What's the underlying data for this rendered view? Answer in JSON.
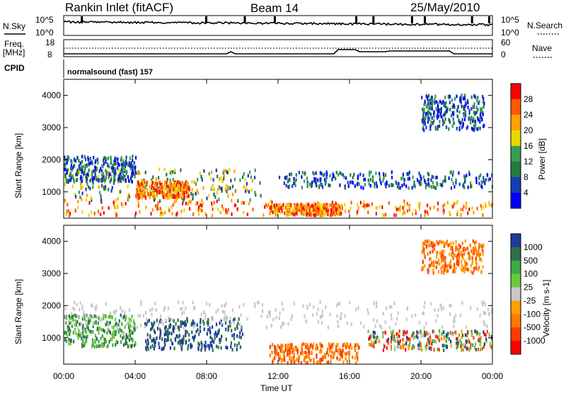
{
  "header": {
    "station": "Rankin Inlet (fitACF)",
    "beam": "Beam 14",
    "date": "25/May/2010"
  },
  "side_labels": {
    "nsky": "N.Sky",
    "freq_line1": "Freq.",
    "freq_line2": "[MHz]",
    "cpid": "CPID",
    "nsearch": "N.Search",
    "nave": "Nave"
  },
  "nsky_axis": {
    "top": "10^5",
    "bottom": "10^0"
  },
  "freq_axis": {
    "left_ticks": [
      "18",
      "8"
    ],
    "right_ticks": [
      "60",
      "0"
    ]
  },
  "cpid_text": "normalsound (fast) 157",
  "axes": {
    "xlabel": "Time UT",
    "ylabel": "Slant Range [km]"
  },
  "chart_data": [
    {
      "type": "heatmap",
      "title": "",
      "variable": "Power [dB]",
      "colorbar_label": "Power [dB]",
      "colorbar_ticks": [
        "28",
        "24",
        "20",
        "16",
        "12",
        "8",
        "4"
      ],
      "colorbar_colors": [
        "#ff0000",
        "#ff5a00",
        "#ffa000",
        "#e8d800",
        "#3c9b5a",
        "#237b3c",
        "#193cb4",
        "#0000ff"
      ],
      "x_ticks": [
        "00:00",
        "04:00",
        "08:00",
        "12:00",
        "16:00",
        "20:00",
        "00:00"
      ],
      "y_ticks": [
        "1000",
        "2000",
        "3000",
        "4000"
      ],
      "xlim_hours": [
        0,
        24
      ],
      "ylim_km": [
        180,
        4500
      ],
      "scatter_regions": [
        {
          "t0": 0.0,
          "t1": 24.0,
          "r0": 250,
          "r1": 700,
          "level": "high"
        },
        {
          "t0": 0.0,
          "t1": 11.0,
          "r0": 700,
          "r1": 1700,
          "level": "medium"
        },
        {
          "t0": 4.0,
          "t1": 7.0,
          "r0": 800,
          "r1": 1300,
          "level": "high"
        },
        {
          "t0": 11.5,
          "t1": 15.5,
          "r0": 250,
          "r1": 600,
          "level": "high"
        },
        {
          "t0": 12.0,
          "t1": 24.0,
          "r0": 1100,
          "r1": 1600,
          "level": "low"
        },
        {
          "t0": 0.0,
          "t1": 4.0,
          "r0": 1300,
          "r1": 2100,
          "level": "low"
        },
        {
          "t0": 20.0,
          "t1": 23.5,
          "r0": 2900,
          "r1": 4000,
          "level": "low"
        }
      ]
    },
    {
      "type": "heatmap",
      "title": "",
      "variable": "Velocity [m s-1]",
      "colorbar_label": "Velocity [m s-1]",
      "colorbar_ticks": [
        "1000",
        "500",
        "100",
        "25",
        "-25",
        "-100",
        "-500",
        "-1000"
      ],
      "colorbar_colors": [
        "#1e3ca0",
        "#2d6e4b",
        "#3caa46",
        "#6ec83c",
        "#c8c8c8",
        "#ffa000",
        "#ff7800",
        "#ff3c00",
        "#ff0000"
      ],
      "x_ticks": [
        "00:00",
        "04:00",
        "08:00",
        "12:00",
        "16:00",
        "20:00",
        "00:00"
      ],
      "y_ticks": [
        "1000",
        "2000",
        "3000",
        "4000"
      ],
      "xlim_hours": [
        0,
        24
      ],
      "ylim_km": [
        180,
        4500
      ],
      "ground_scatter_color": "#c8c8c8",
      "scatter_regions": [
        {
          "t0": 0.0,
          "t1": 4.0,
          "r0": 700,
          "r1": 1700,
          "level": "green"
        },
        {
          "t0": 4.5,
          "t1": 10.0,
          "r0": 600,
          "r1": 1600,
          "level": "blue"
        },
        {
          "t0": 11.5,
          "t1": 16.5,
          "r0": 200,
          "r1": 800,
          "level": "orange"
        },
        {
          "t0": 0.0,
          "t1": 24.0,
          "r0": 1300,
          "r1": 2100,
          "level": "grey"
        },
        {
          "t0": 17.0,
          "t1": 24.0,
          "r0": 600,
          "r1": 1200,
          "level": "mixed"
        },
        {
          "t0": 20.0,
          "t1": 23.5,
          "r0": 3000,
          "r1": 4000,
          "level": "orange"
        }
      ]
    }
  ]
}
